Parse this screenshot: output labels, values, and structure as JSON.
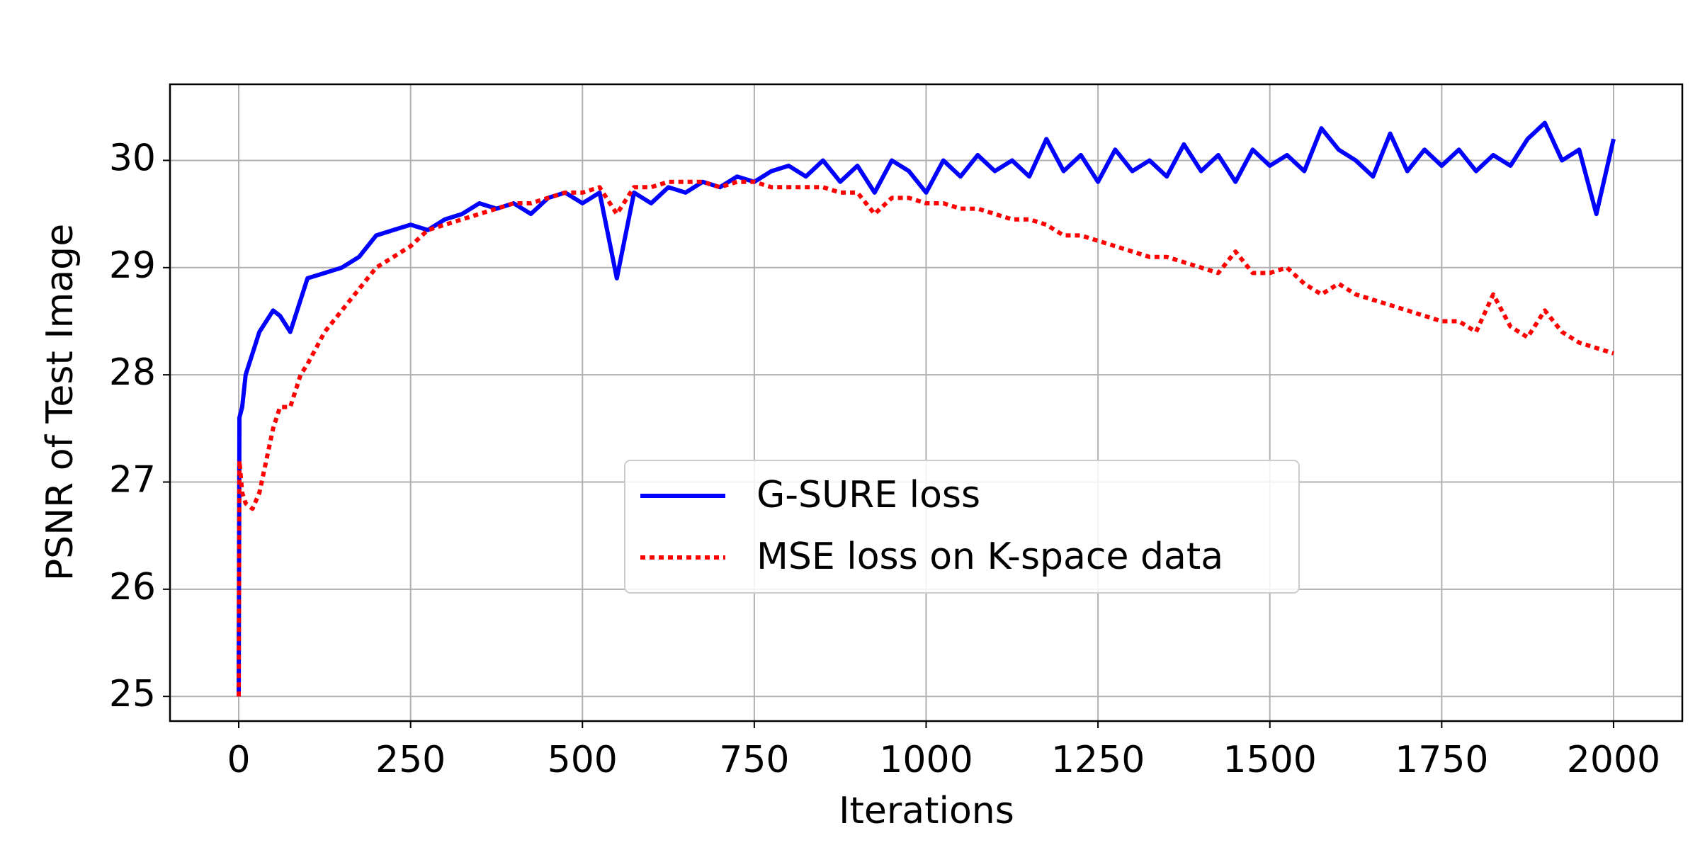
{
  "chart_data": {
    "type": "line",
    "x_label": "Iterations",
    "y_label": "PSNR of Test Image",
    "x": [
      0,
      1,
      5,
      10,
      20,
      30,
      40,
      50,
      60,
      75,
      90,
      100,
      125,
      150,
      175,
      200,
      225,
      250,
      275,
      300,
      325,
      350,
      375,
      400,
      425,
      450,
      475,
      500,
      525,
      550,
      575,
      600,
      625,
      650,
      675,
      700,
      725,
      750,
      775,
      800,
      825,
      850,
      875,
      900,
      925,
      950,
      975,
      1000,
      1025,
      1050,
      1075,
      1100,
      1125,
      1150,
      1175,
      1200,
      1225,
      1250,
      1275,
      1300,
      1325,
      1350,
      1375,
      1400,
      1425,
      1450,
      1475,
      1500,
      1525,
      1550,
      1575,
      1600,
      1625,
      1650,
      1675,
      1700,
      1725,
      1750,
      1775,
      1800,
      1825,
      1850,
      1875,
      1900,
      1925,
      1950,
      1975,
      2000
    ],
    "series": [
      {
        "name": "G-SURE loss",
        "color": "#0000ff",
        "style": "solid",
        "values": [
          25.0,
          27.6,
          27.7,
          28.0,
          28.2,
          28.4,
          28.5,
          28.6,
          28.55,
          28.4,
          28.7,
          28.9,
          28.95,
          29.0,
          29.1,
          29.3,
          29.35,
          29.4,
          29.35,
          29.45,
          29.5,
          29.6,
          29.55,
          29.6,
          29.5,
          29.65,
          29.7,
          29.6,
          29.7,
          28.9,
          29.7,
          29.6,
          29.75,
          29.7,
          29.8,
          29.75,
          29.85,
          29.8,
          29.9,
          29.95,
          29.85,
          30.0,
          29.8,
          29.95,
          29.7,
          30.0,
          29.9,
          29.7,
          30.0,
          29.85,
          30.05,
          29.9,
          30.0,
          29.85,
          30.2,
          29.9,
          30.05,
          29.8,
          30.1,
          29.9,
          30.0,
          29.85,
          30.15,
          29.9,
          30.05,
          29.8,
          30.1,
          29.95,
          30.05,
          29.9,
          30.3,
          30.1,
          30.0,
          29.85,
          30.25,
          29.9,
          30.1,
          29.95,
          30.1,
          29.9,
          30.05,
          29.95,
          30.2,
          30.35,
          30.0,
          30.1,
          29.5,
          30.2
        ]
      },
      {
        "name": "MSE loss on K-space data",
        "color": "#ff0000",
        "style": "dotted",
        "values": [
          25.0,
          27.2,
          26.9,
          26.8,
          26.75,
          26.9,
          27.2,
          27.5,
          27.7,
          27.7,
          28.0,
          28.1,
          28.4,
          28.6,
          28.8,
          29.0,
          29.1,
          29.2,
          29.35,
          29.4,
          29.45,
          29.5,
          29.55,
          29.6,
          29.6,
          29.65,
          29.7,
          29.7,
          29.75,
          29.5,
          29.75,
          29.75,
          29.8,
          29.8,
          29.8,
          29.75,
          29.8,
          29.8,
          29.75,
          29.75,
          29.75,
          29.75,
          29.7,
          29.7,
          29.5,
          29.65,
          29.65,
          29.6,
          29.6,
          29.55,
          29.55,
          29.5,
          29.45,
          29.45,
          29.4,
          29.3,
          29.3,
          29.25,
          29.2,
          29.15,
          29.1,
          29.1,
          29.05,
          29.0,
          28.95,
          29.15,
          28.95,
          28.95,
          29.0,
          28.85,
          28.75,
          28.85,
          28.75,
          28.7,
          28.65,
          28.6,
          28.55,
          28.5,
          28.5,
          28.4,
          28.75,
          28.45,
          28.35,
          28.6,
          28.4,
          28.3,
          28.25,
          28.2
        ]
      }
    ],
    "xlim": [
      -100,
      2100
    ],
    "ylim": [
      24.77,
      30.71
    ],
    "xticks": [
      0,
      250,
      500,
      750,
      1000,
      1250,
      1500,
      1750,
      2000
    ],
    "yticks": [
      25,
      26,
      27,
      28,
      29,
      30
    ],
    "grid": true,
    "legend": "center"
  }
}
